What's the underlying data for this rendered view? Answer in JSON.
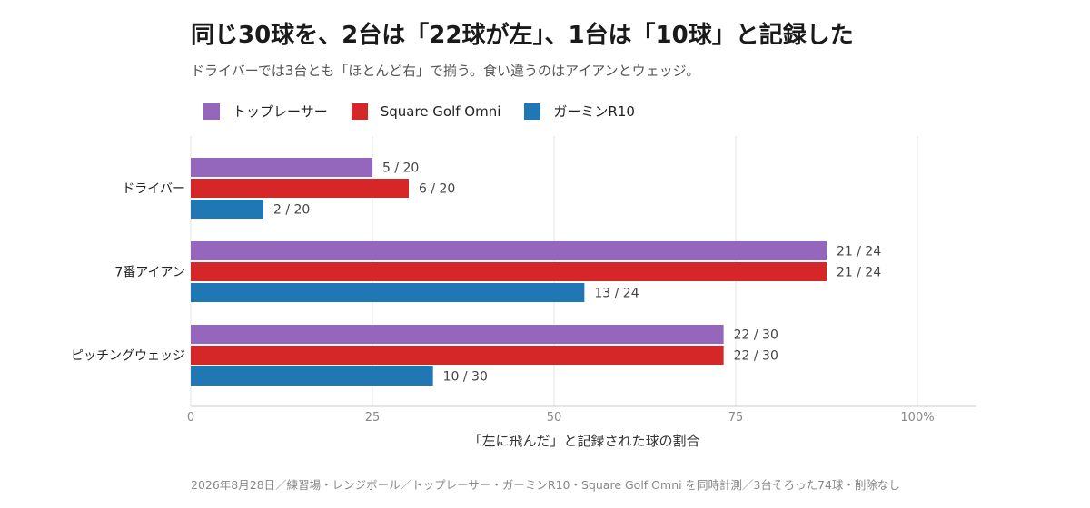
{
  "title": "同じ30球を、2台は「22球が左」、1台は「10球」と記録した",
  "subtitle": "ドライバーでは3台とも「ほとんど右」で揃う。食い違うのはアイアンとウェッジ。",
  "footer": "2026年8月28日／練習場・レンジボール／トップレーサー・ガーミンR10・Square Golf Omni を同時計測／3台そろった74球・削除なし",
  "chart_data": {
    "type": "bar",
    "orientation": "horizontal",
    "categories": [
      "ドライバー",
      "7番アイアン",
      "ピッチングウェッジ"
    ],
    "series": [
      {
        "name": "トップレーサー",
        "color": "#9467bd",
        "values": [
          25.0,
          87.5,
          73.33
        ],
        "labels": [
          "5 / 20",
          "21 / 24",
          "22 / 30"
        ]
      },
      {
        "name": "Square Golf Omni",
        "color": "#d62728",
        "values": [
          30.0,
          87.5,
          73.33
        ],
        "labels": [
          "6 / 20",
          "21 / 24",
          "22 / 30"
        ]
      },
      {
        "name": "ガーミンR10",
        "color": "#1f77b4",
        "values": [
          10.0,
          54.17,
          33.33
        ],
        "labels": [
          "2 / 20",
          "13 / 24",
          "10 / 30"
        ]
      }
    ],
    "xlabel": "「左に飛んだ」と記録された球の割合",
    "xlim": [
      0,
      100
    ],
    "xticks": [
      0,
      25,
      50,
      75,
      100
    ],
    "xtick_labels": [
      "0",
      "25",
      "50",
      "75",
      "100%"
    ],
    "grid": true,
    "legend_position": "top-left"
  }
}
